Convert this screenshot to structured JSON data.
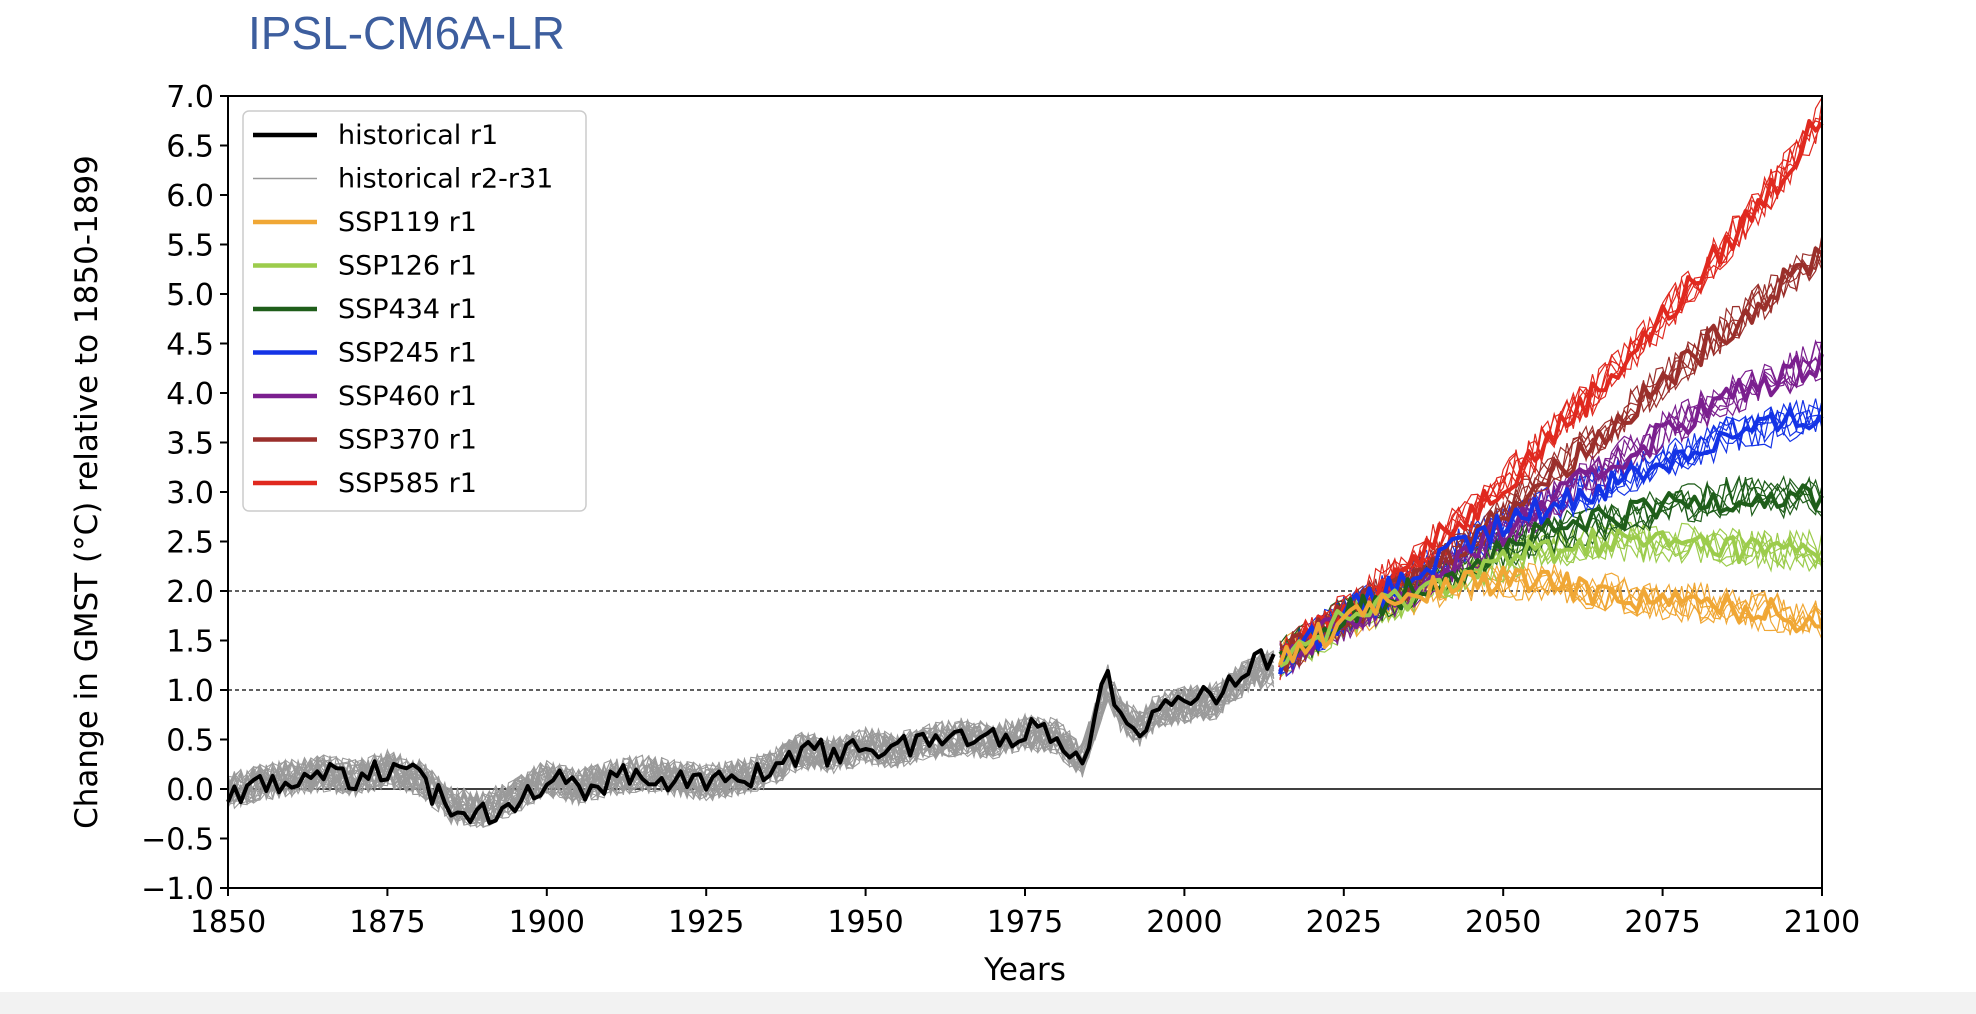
{
  "chart_data": {
    "type": "line",
    "title": "IPSL-CM6A-LR",
    "xlabel": "Years",
    "ylabel": "Change in GMST (°C) relative to 1850-1899",
    "xlim": [
      1850,
      2100
    ],
    "ylim": [
      -1.0,
      7.0
    ],
    "xticks": [
      1850,
      1875,
      1900,
      1925,
      1950,
      1975,
      2000,
      2025,
      2050,
      2075,
      2100
    ],
    "yticks": [
      -1.0,
      -0.5,
      0.0,
      0.5,
      1.0,
      1.5,
      2.0,
      2.5,
      3.0,
      3.5,
      4.0,
      4.5,
      5.0,
      5.5,
      6.0,
      6.5,
      7.0
    ],
    "ytick_labels": [
      "−1.0",
      "−0.5",
      "0.0",
      "0.5",
      "1.0",
      "1.5",
      "2.0",
      "2.5",
      "3.0",
      "3.5",
      "4.0",
      "4.5",
      "5.0",
      "5.5",
      "6.0",
      "6.5",
      "7.0"
    ],
    "reference_lines": [
      {
        "y": 0.0,
        "style": "solid"
      },
      {
        "y": 1.0,
        "style": "dotted"
      },
      {
        "y": 2.0,
        "style": "dotted"
      }
    ],
    "legend_position": "top-left",
    "legend": [
      {
        "label": "historical r1",
        "color": "#000000",
        "kind": "thick"
      },
      {
        "label": "historical r2-r31",
        "color": "#999999",
        "kind": "thin"
      },
      {
        "label": "SSP119 r1",
        "color": "#f0a735",
        "kind": "thick"
      },
      {
        "label": "SSP126 r1",
        "color": "#9ccc4c",
        "kind": "thick"
      },
      {
        "label": "SSP434 r1",
        "color": "#1f5e1a",
        "kind": "thick"
      },
      {
        "label": "SSP245 r1",
        "color": "#1433e6",
        "kind": "thick"
      },
      {
        "label": "SSP460 r1",
        "color": "#7b1f8f",
        "kind": "thick"
      },
      {
        "label": "SSP370 r1",
        "color": "#9a2f2b",
        "kind": "thick"
      },
      {
        "label": "SSP585 r1",
        "color": "#e0291f",
        "kind": "thick"
      }
    ],
    "historical_ensemble_members": 30,
    "series": [
      {
        "name": "historical r1",
        "color": "#000000",
        "x": [
          1850,
          1855,
          1860,
          1865,
          1870,
          1875,
          1880,
          1885,
          1890,
          1895,
          1900,
          1905,
          1910,
          1915,
          1920,
          1925,
          1930,
          1935,
          1940,
          1945,
          1950,
          1955,
          1960,
          1965,
          1970,
          1975,
          1980,
          1984,
          1988,
          1990,
          1993,
          1996,
          2000,
          2005,
          2010,
          2014
        ],
        "values": [
          -0.05,
          0.05,
          0.1,
          0.15,
          0.1,
          0.2,
          0.1,
          -0.2,
          -0.25,
          -0.1,
          0.1,
          0.0,
          0.1,
          0.15,
          0.1,
          0.05,
          0.1,
          0.2,
          0.4,
          0.35,
          0.45,
          0.4,
          0.5,
          0.55,
          0.5,
          0.6,
          0.55,
          0.3,
          1.15,
          0.8,
          0.65,
          0.85,
          0.9,
          0.95,
          1.25,
          1.3
        ]
      },
      {
        "name": "SSP119 r1",
        "color": "#f0a735",
        "x": [
          2015,
          2025,
          2035,
          2045,
          2055,
          2065,
          2075,
          2085,
          2095,
          2100
        ],
        "values": [
          1.3,
          1.7,
          1.95,
          2.1,
          2.1,
          2.0,
          1.9,
          1.85,
          1.75,
          1.7
        ]
      },
      {
        "name": "SSP126 r1",
        "color": "#9ccc4c",
        "x": [
          2015,
          2025,
          2035,
          2045,
          2055,
          2065,
          2075,
          2085,
          2095,
          2100
        ],
        "values": [
          1.3,
          1.7,
          1.95,
          2.2,
          2.4,
          2.5,
          2.5,
          2.45,
          2.4,
          2.4
        ]
      },
      {
        "name": "SSP434 r1",
        "color": "#1f5e1a",
        "x": [
          2015,
          2025,
          2035,
          2045,
          2055,
          2065,
          2075,
          2085,
          2095,
          2100
        ],
        "values": [
          1.3,
          1.75,
          2.0,
          2.3,
          2.55,
          2.7,
          2.85,
          2.95,
          2.95,
          2.95
        ]
      },
      {
        "name": "SSP245 r1",
        "color": "#1433e6",
        "x": [
          2015,
          2025,
          2035,
          2045,
          2055,
          2065,
          2075,
          2085,
          2095,
          2100
        ],
        "values": [
          1.3,
          1.75,
          2.1,
          2.5,
          2.8,
          3.05,
          3.3,
          3.55,
          3.7,
          3.8
        ]
      },
      {
        "name": "SSP460 r1",
        "color": "#7b1f8f",
        "x": [
          2015,
          2025,
          2035,
          2045,
          2055,
          2065,
          2075,
          2085,
          2095,
          2100
        ],
        "values": [
          1.3,
          1.7,
          2.0,
          2.4,
          2.8,
          3.2,
          3.6,
          3.95,
          4.2,
          4.35
        ]
      },
      {
        "name": "SSP370 r1",
        "color": "#9a2f2b",
        "x": [
          2015,
          2025,
          2035,
          2045,
          2055,
          2065,
          2075,
          2085,
          2095,
          2100
        ],
        "values": [
          1.3,
          1.75,
          2.1,
          2.55,
          3.05,
          3.55,
          4.1,
          4.65,
          5.15,
          5.45
        ]
      },
      {
        "name": "SSP585 r1",
        "color": "#e0291f",
        "x": [
          2015,
          2025,
          2035,
          2045,
          2055,
          2065,
          2075,
          2085,
          2095,
          2100
        ],
        "values": [
          1.3,
          1.8,
          2.25,
          2.8,
          3.4,
          4.05,
          4.75,
          5.5,
          6.3,
          6.8
        ]
      }
    ]
  }
}
